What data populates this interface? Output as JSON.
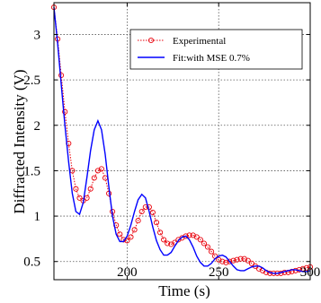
{
  "chart_data": {
    "type": "line",
    "title": "",
    "xlabel": "Time (s)",
    "ylabel": "Diffracted Intensity (V)",
    "xlim": [
      160,
      300
    ],
    "ylim": [
      0.3,
      3.35
    ],
    "x_ticks": [
      200,
      250,
      300
    ],
    "y_ticks": [
      0.5,
      1,
      1.5,
      2,
      2.5,
      3
    ],
    "x_tick_labels": [
      "200",
      "250",
      "300"
    ],
    "y_tick_labels": [
      "0.5",
      "1",
      "1.5",
      "2",
      "2.5",
      "3"
    ],
    "grid": true,
    "legend_position": "top-right",
    "series": [
      {
        "name": "Experimental",
        "style": "dotted line with open circle markers",
        "color": "#e8000b",
        "x": [
          160,
          162,
          164,
          166,
          168,
          170,
          172,
          174,
          176,
          178,
          180,
          182,
          184,
          186,
          188,
          190,
          192,
          194,
          196,
          198,
          200,
          202,
          204,
          206,
          208,
          210,
          212,
          214,
          216,
          218,
          220,
          222,
          224,
          226,
          228,
          230,
          232,
          234,
          236,
          238,
          240,
          242,
          244,
          246,
          248,
          250,
          252,
          254,
          256,
          258,
          260,
          262,
          264,
          266,
          268,
          270,
          272,
          274,
          276,
          278,
          280,
          282,
          284,
          286,
          288,
          290,
          292,
          294,
          296,
          298,
          300
        ],
        "y": [
          3.3,
          2.95,
          2.55,
          2.15,
          1.8,
          1.5,
          1.3,
          1.2,
          1.17,
          1.2,
          1.3,
          1.42,
          1.5,
          1.52,
          1.42,
          1.25,
          1.05,
          0.9,
          0.8,
          0.74,
          0.73,
          0.77,
          0.85,
          0.95,
          1.05,
          1.1,
          1.1,
          1.04,
          0.93,
          0.82,
          0.74,
          0.7,
          0.69,
          0.71,
          0.74,
          0.76,
          0.78,
          0.79,
          0.79,
          0.77,
          0.74,
          0.7,
          0.66,
          0.61,
          0.56,
          0.52,
          0.5,
          0.49,
          0.5,
          0.51,
          0.52,
          0.53,
          0.53,
          0.51,
          0.48,
          0.45,
          0.42,
          0.4,
          0.38,
          0.37,
          0.37,
          0.37,
          0.37,
          0.38,
          0.38,
          0.39,
          0.4,
          0.41,
          0.42,
          0.43,
          0.44
        ]
      },
      {
        "name": "Fit:with MSE 0.7%",
        "style": "solid line",
        "color": "#0000ff",
        "x": [
          160,
          162,
          164,
          166,
          168,
          170,
          172,
          174,
          176,
          178,
          180,
          182,
          184,
          186,
          188,
          190,
          192,
          194,
          196,
          198,
          200,
          202,
          204,
          206,
          208,
          210,
          212,
          214,
          216,
          218,
          220,
          222,
          224,
          226,
          228,
          230,
          232,
          234,
          236,
          238,
          240,
          242,
          244,
          246,
          248,
          250,
          252,
          254,
          256,
          258,
          260,
          262,
          264,
          266,
          268,
          270,
          272,
          274,
          276,
          278,
          280,
          282,
          284,
          286,
          288,
          290,
          292,
          294,
          296,
          298,
          300
        ],
        "y": [
          3.3,
          2.9,
          2.45,
          2.0,
          1.6,
          1.25,
          1.05,
          1.02,
          1.15,
          1.42,
          1.72,
          1.95,
          2.05,
          1.95,
          1.68,
          1.32,
          1.0,
          0.8,
          0.72,
          0.72,
          0.78,
          0.9,
          1.05,
          1.18,
          1.24,
          1.2,
          1.05,
          0.88,
          0.73,
          0.63,
          0.57,
          0.57,
          0.6,
          0.67,
          0.73,
          0.77,
          0.78,
          0.74,
          0.66,
          0.56,
          0.49,
          0.45,
          0.45,
          0.48,
          0.53,
          0.56,
          0.57,
          0.55,
          0.5,
          0.45,
          0.41,
          0.4,
          0.4,
          0.42,
          0.44,
          0.45,
          0.45,
          0.43,
          0.4,
          0.38,
          0.37,
          0.37,
          0.38,
          0.39,
          0.4,
          0.41,
          0.41,
          0.4,
          0.39,
          0.39,
          0.4
        ]
      }
    ]
  }
}
